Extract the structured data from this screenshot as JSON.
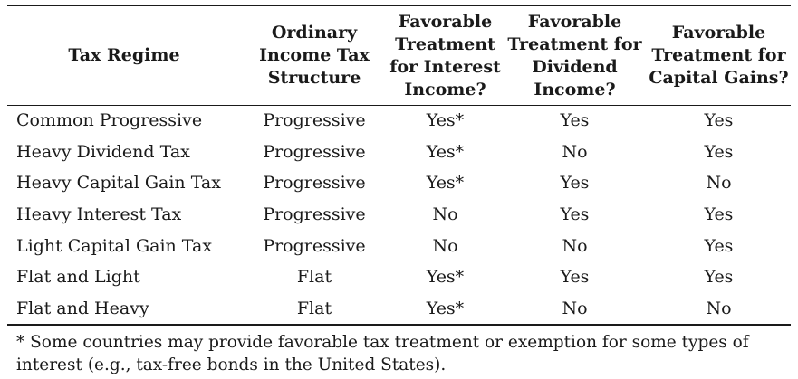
{
  "table": {
    "headers": [
      "Tax Regime",
      "Ordinary Income Tax Structure",
      "Favorable Treatment for Interest Income?",
      "Favorable Treatment for Dividend Income?",
      "Favorable Treatment for Capital Gains?"
    ],
    "rows": [
      [
        "Common Progressive",
        "Progressive",
        "Yes*",
        "Yes",
        "Yes"
      ],
      [
        "Heavy Dividend Tax",
        "Progressive",
        "Yes*",
        "No",
        "Yes"
      ],
      [
        "Heavy Capital Gain Tax",
        "Progressive",
        "Yes*",
        "Yes",
        "No"
      ],
      [
        "Heavy Interest Tax",
        "Progressive",
        "No",
        "Yes",
        "Yes"
      ],
      [
        "Light Capital Gain Tax",
        "Progressive",
        "No",
        "No",
        "Yes"
      ],
      [
        "Flat and Light",
        "Flat",
        "Yes*",
        "Yes",
        "Yes"
      ],
      [
        "Flat and Heavy",
        "Flat",
        "Yes*",
        "No",
        "No"
      ]
    ]
  },
  "footnote": "* Some countries may provide favorable tax treatment or exemption for some types of interest (e.g., tax-free bonds in the United States)."
}
